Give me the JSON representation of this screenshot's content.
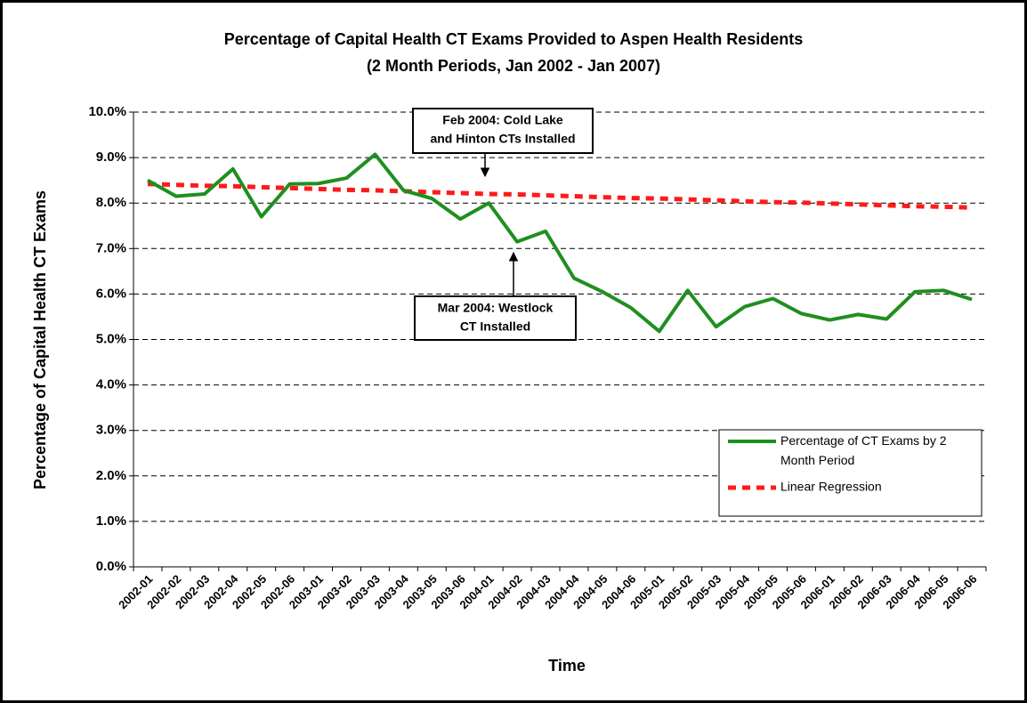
{
  "chart_data": {
    "type": "line",
    "title": "Percentage of Capital Health CT Exams Provided to Aspen Health Residents",
    "subtitle": "(2 Month Periods, Jan 2002 - Jan 2007)",
    "x_label": "Time",
    "y_label": "Percentage of Capital Health CT Exams",
    "categories": [
      "2002-01",
      "2002-02",
      "2002-03",
      "2002-04",
      "2002-05",
      "2002-06",
      "2003-01",
      "2003-02",
      "2003-03",
      "2003-04",
      "2003-05",
      "2003-06",
      "2004-01",
      "2004-02",
      "2004-03",
      "2004-04",
      "2004-05",
      "2004-06",
      "2005-01",
      "2005-02",
      "2005-03",
      "2005-04",
      "2005-05",
      "2005-06",
      "2006-01",
      "2006-02",
      "2006-03",
      "2006-04",
      "2006-05",
      "2006-06"
    ],
    "series": [
      {
        "name": "Percentage of CT Exams by 2 Month Period",
        "color": "#1f8f1f",
        "line_style": "solid",
        "values": [
          8.5,
          8.15,
          8.2,
          8.75,
          7.7,
          8.42,
          8.43,
          8.55,
          9.07,
          8.28,
          8.1,
          7.65,
          8.0,
          7.15,
          7.38,
          6.35,
          6.05,
          5.7,
          5.18,
          6.08,
          5.28,
          5.72,
          5.9,
          5.57,
          5.43,
          5.55,
          5.45,
          6.05,
          6.08,
          5.88
        ]
      },
      {
        "name": "Linear Regression",
        "color": "#ff1a1a",
        "line_style": "dashed",
        "values": [
          8.42,
          8.4,
          8.38,
          8.37,
          8.35,
          8.33,
          8.31,
          8.29,
          8.28,
          8.26,
          8.24,
          8.22,
          8.2,
          8.19,
          8.17,
          8.15,
          8.13,
          8.11,
          8.1,
          8.08,
          8.06,
          8.04,
          8.02,
          8.01,
          7.99,
          7.97,
          7.95,
          7.93,
          7.92,
          7.9
        ]
      }
    ],
    "ylim": [
      0,
      10
    ],
    "yticks": [
      {
        "value": 0,
        "label": "0.0%"
      },
      {
        "value": 1,
        "label": "1.0%"
      },
      {
        "value": 2,
        "label": "2.0%"
      },
      {
        "value": 3,
        "label": "3.0%"
      },
      {
        "value": 4,
        "label": "4.0%"
      },
      {
        "value": 5,
        "label": "5.0%"
      },
      {
        "value": 6,
        "label": "6.0%"
      },
      {
        "value": 7,
        "label": "7.0%"
      },
      {
        "value": 8,
        "label": "8.0%"
      },
      {
        "value": 9,
        "label": "9.0%"
      },
      {
        "value": 10,
        "label": "10.0%"
      }
    ],
    "grid": true,
    "legend": "lower right",
    "annotations": [
      {
        "lines": [
          "Feb 2004: Cold Lake",
          "and Hinton CTs Installed"
        ]
      },
      {
        "lines": [
          "Mar 2004: Westlock",
          "CT Installed"
        ]
      }
    ]
  }
}
